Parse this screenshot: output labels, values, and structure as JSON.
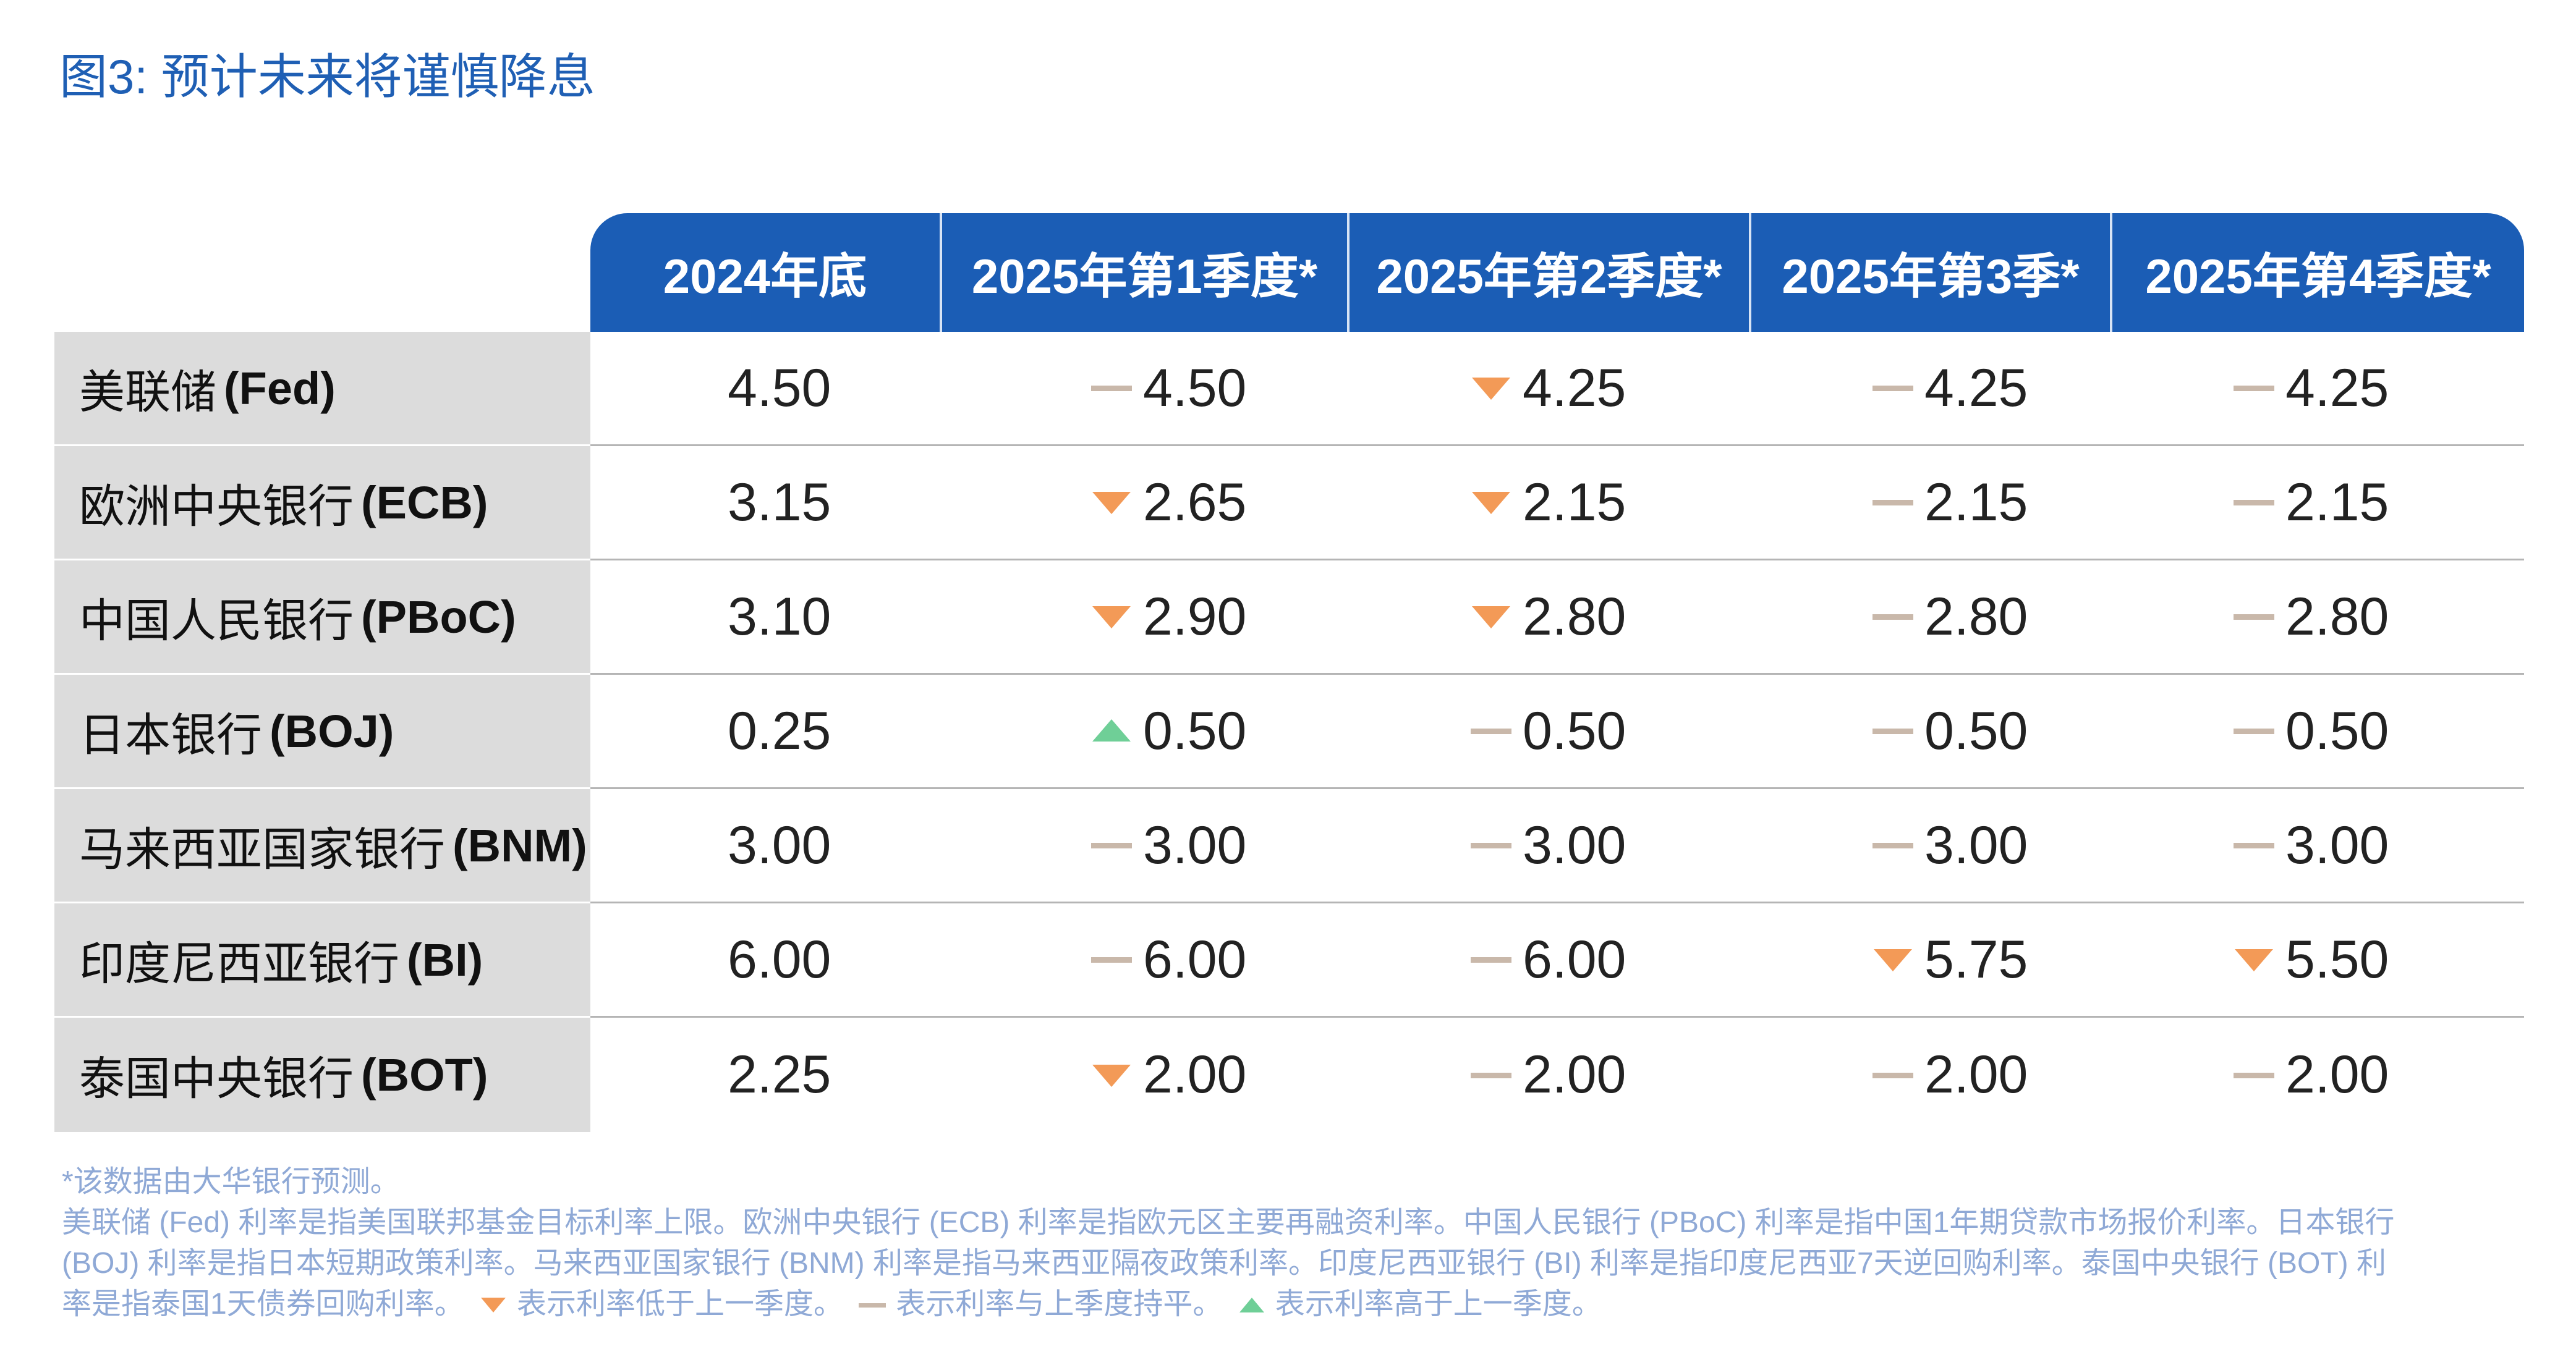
{
  "title": "图3: 预计未来将谨慎降息",
  "columns": [
    "2024年底",
    "2025年第1季度*",
    "2025年第2季度*",
    "2025年第3季*",
    "2025年第4季度*"
  ],
  "rows": [
    {
      "name": "美联储",
      "code": "(Fed)",
      "values": [
        "4.50",
        "4.50",
        "4.25",
        "4.25",
        "4.25"
      ],
      "trend": [
        "",
        "flat",
        "down",
        "flat",
        "flat"
      ]
    },
    {
      "name": "欧洲中央银行",
      "code": "(ECB)",
      "values": [
        "3.15",
        "2.65",
        "2.15",
        "2.15",
        "2.15"
      ],
      "trend": [
        "",
        "down",
        "down",
        "flat",
        "flat"
      ]
    },
    {
      "name": "中国人民银行",
      "code": "(PBoC)",
      "values": [
        "3.10",
        "2.90",
        "2.80",
        "2.80",
        "2.80"
      ],
      "trend": [
        "",
        "down",
        "down",
        "flat",
        "flat"
      ]
    },
    {
      "name": "日本银行",
      "code": "(BOJ)",
      "values": [
        "0.25",
        "0.50",
        "0.50",
        "0.50",
        "0.50"
      ],
      "trend": [
        "",
        "up",
        "flat",
        "flat",
        "flat"
      ]
    },
    {
      "name": "马来西亚国家银行",
      "code": "(BNM)",
      "values": [
        "3.00",
        "3.00",
        "3.00",
        "3.00",
        "3.00"
      ],
      "trend": [
        "",
        "flat",
        "flat",
        "flat",
        "flat"
      ]
    },
    {
      "name": "印度尼西亚银行",
      "code": "(BI)",
      "values": [
        "6.00",
        "6.00",
        "6.00",
        "5.75",
        "5.50"
      ],
      "trend": [
        "",
        "flat",
        "flat",
        "down",
        "down"
      ]
    },
    {
      "name": "泰国中央银行",
      "code": "(BOT)",
      "values": [
        "2.25",
        "2.00",
        "2.00",
        "2.00",
        "2.00"
      ],
      "trend": [
        "",
        "down",
        "flat",
        "flat",
        "flat"
      ]
    }
  ],
  "footnotes": {
    "line1": "*该数据由大华银行预测。",
    "line2": "美联储 (Fed) 利率是指美国联邦基金目标利率上限。欧洲中央银行 (ECB) 利率是指欧元区主要再融资利率。中国人民银行 (PBoC) 利率是指中国1年期贷款市场报价利率。日本银行",
    "line3": "(BOJ) 利率是指日本短期政策利率。马来西亚国家银行 (BNM) 利率是指马来西亚隔夜政策利率。印度尼西亚银行 (BI) 利率是指印度尼西亚7天逆回购利率。泰国中央银行 (BOT) 利",
    "line4_prefix": "率是指泰国1天债券回购利率。",
    "legend_down": "表示利率低于上一季度。",
    "legend_flat": "表示利率与上季度持平。",
    "legend_up": "表示利率高于上一季度。"
  },
  "colors": {
    "header": "#1b5db5",
    "title": "#1f5fb4",
    "down": "#f39a57",
    "up": "#6fcf97",
    "flat": "#c9b8aa",
    "label_bg": "#dcdcdc",
    "footnote": "#8fa9d6"
  }
}
